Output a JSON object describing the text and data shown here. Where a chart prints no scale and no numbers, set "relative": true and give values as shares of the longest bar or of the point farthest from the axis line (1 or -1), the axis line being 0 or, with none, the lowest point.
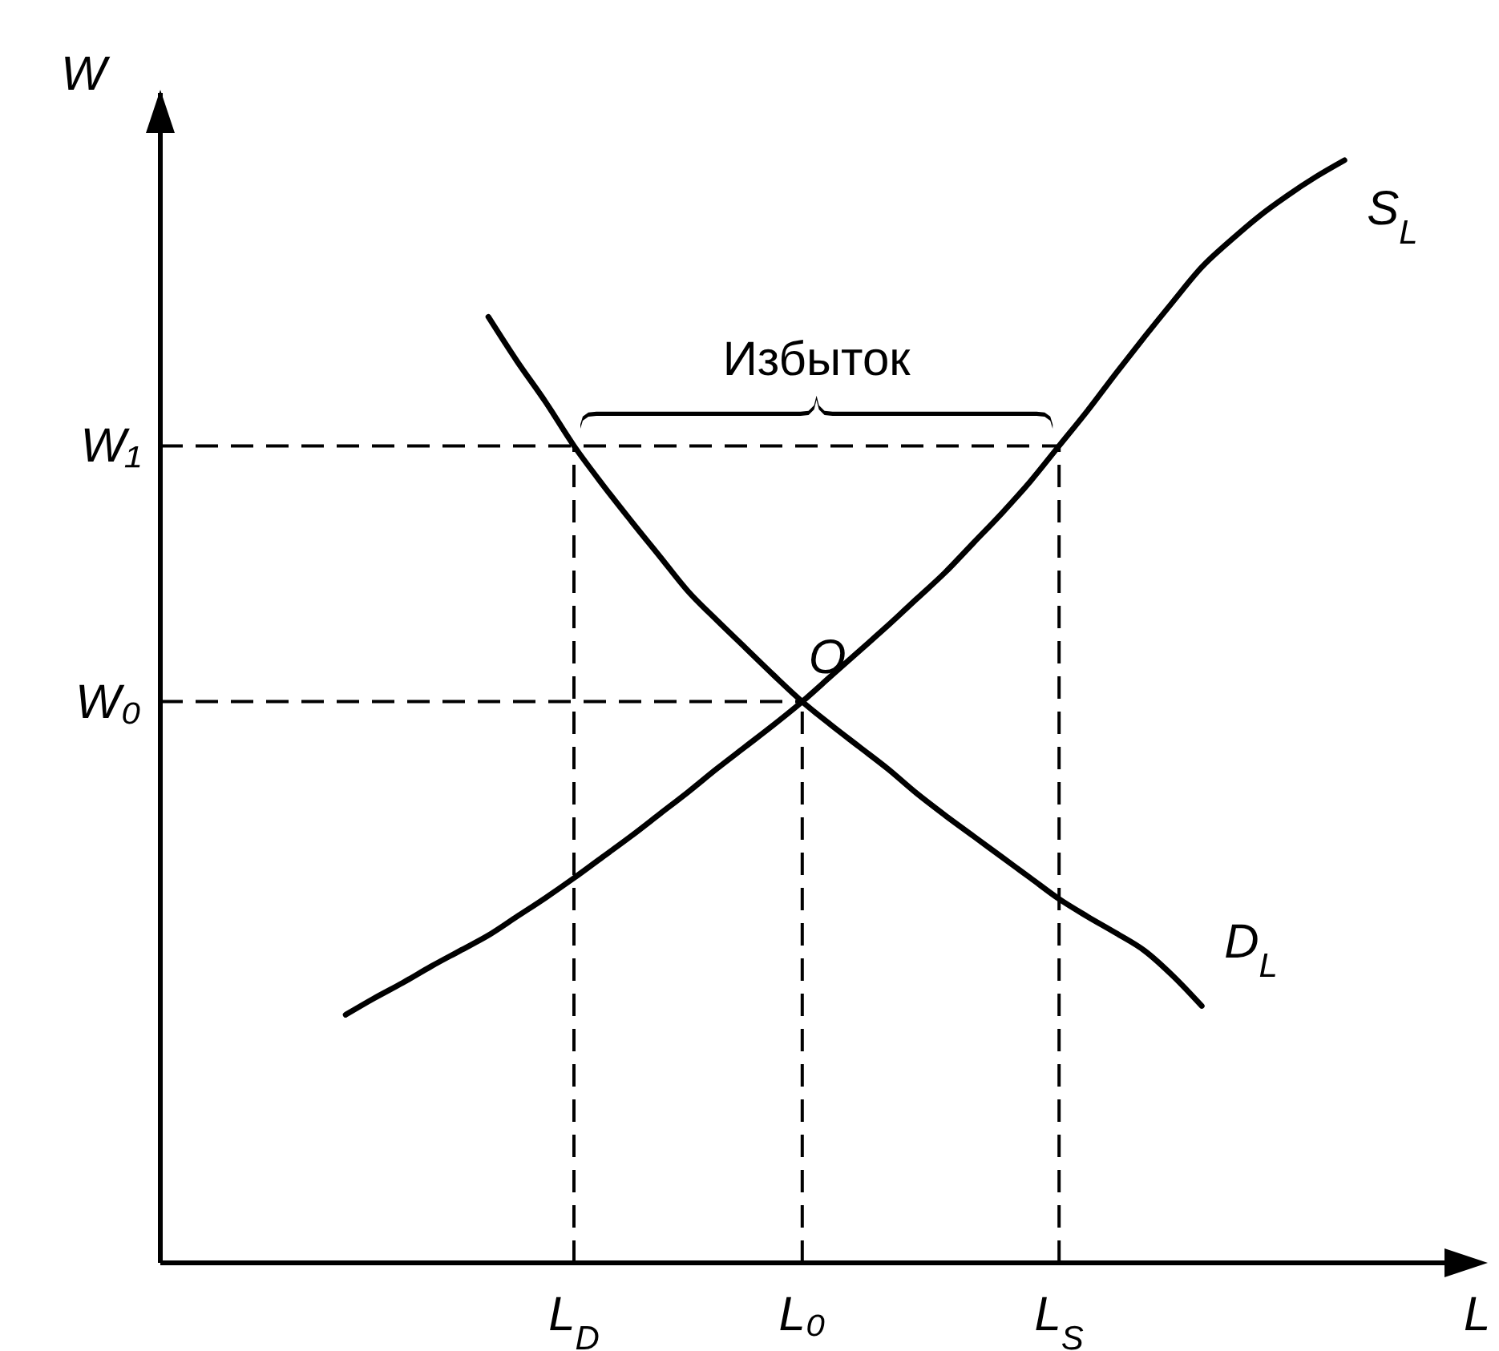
{
  "chart_data": {
    "type": "line",
    "xlabel": "L",
    "ylabel": "W",
    "relative": true,
    "categories": [
      null,
      null,
      null,
      null,
      null,
      null,
      null,
      null,
      "L$_{D}$",
      null,
      null,
      null,
      null,
      null,
      null,
      null,
      "L₀",
      null,
      null,
      null,
      null,
      null,
      null,
      null,
      null,
      "L$_{S}$",
      null,
      null,
      null,
      null,
      null,
      null,
      null,
      null,
      null,
      null
    ],
    "series": [
      {
        "name": "S$_{L}$",
        "color": "#000000",
        "values": [
          0.225,
          0.24,
          0.254,
          0.269,
          0.283,
          0.297,
          0.314,
          0.331,
          0.349,
          0.368,
          0.387,
          0.407,
          0.427,
          0.448,
          0.468,
          0.488,
          0.509,
          0.532,
          0.555,
          0.578,
          0.602,
          0.626,
          0.653,
          0.68,
          0.709,
          0.741,
          0.773,
          0.807,
          0.84,
          0.872,
          0.903,
          0.927,
          0.949,
          0.968,
          0.985,
          1
        ]
      },
      {
        "name": "D$_{L}$",
        "color": "#000000",
        "values": [
          null,
          null,
          null,
          null,
          null,
          0.858,
          0.818,
          0.781,
          0.741,
          0.706,
          0.673,
          0.641,
          0.609,
          0.583,
          0.558,
          0.533,
          0.509,
          0.488,
          0.468,
          0.448,
          0.426,
          0.406,
          0.387,
          0.368,
          0.349,
          0.33,
          0.314,
          0.299,
          0.283,
          0.26,
          0.233,
          null,
          null,
          null,
          null,
          null
        ]
      }
    ],
    "ref_lines": [
      {
        "axis": "y",
        "value": 0.741,
        "label": "W₁",
        "color": "#000000",
        "line_style": "dashed"
      },
      {
        "axis": "y",
        "value": 0.509,
        "label": "W₀",
        "color": "#000000",
        "line_style": "dashed"
      },
      {
        "axis": "x",
        "value": "L$_{D}$",
        "color": "#000000",
        "line_style": "dashed"
      },
      {
        "axis": "x",
        "value": "L₀",
        "color": "#000000",
        "line_style": "dashed"
      },
      {
        "axis": "x",
        "value": "L$_{S}$",
        "color": "#000000",
        "line_style": "dashed"
      }
    ],
    "annotations": [
      {
        "text": "O",
        "x": "L₀",
        "y": 0.509
      },
      "Избыток"
    ]
  }
}
